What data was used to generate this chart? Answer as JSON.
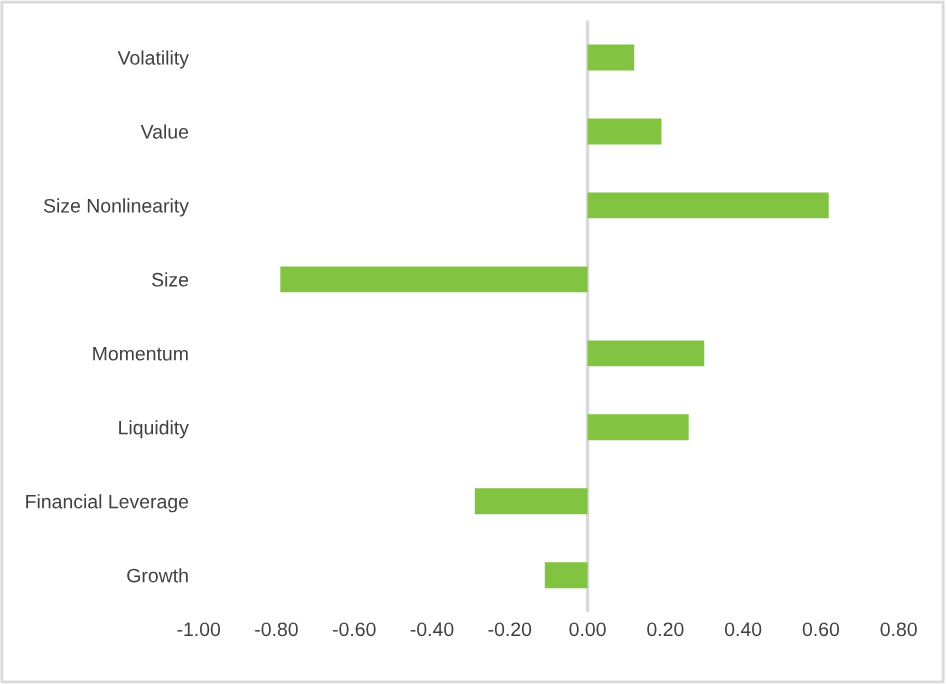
{
  "chart_data": {
    "type": "bar",
    "orientation": "horizontal",
    "categories": [
      "Volatility",
      "Value",
      "Size Nonlinearity",
      "Size",
      "Momentum",
      "Liquidity",
      "Financial Leverage",
      "Growth"
    ],
    "values": [
      0.12,
      0.19,
      0.62,
      -0.79,
      0.3,
      0.26,
      -0.29,
      -0.11
    ],
    "color": "#82c341",
    "xlim": [
      -1.0,
      0.8
    ],
    "xticks": [
      {
        "value": -1.0,
        "label": "-1.00"
      },
      {
        "value": -0.8,
        "label": "-0.80"
      },
      {
        "value": -0.6,
        "label": "-0.60"
      },
      {
        "value": -0.4,
        "label": "-0.40"
      },
      {
        "value": -0.2,
        "label": "-0.20"
      },
      {
        "value": 0,
        "label": "0.00"
      },
      {
        "value": 0.2,
        "label": "0.20"
      },
      {
        "value": 0.4,
        "label": "0.40"
      },
      {
        "value": 0.6,
        "label": "0.60"
      },
      {
        "value": 0.8,
        "label": "0.80"
      }
    ],
    "ref_lines": [
      {
        "axis": "x",
        "value": 0,
        "color": "#d9d9d9",
        "line_style": "solid"
      }
    ],
    "grid": false,
    "legend": false
  }
}
